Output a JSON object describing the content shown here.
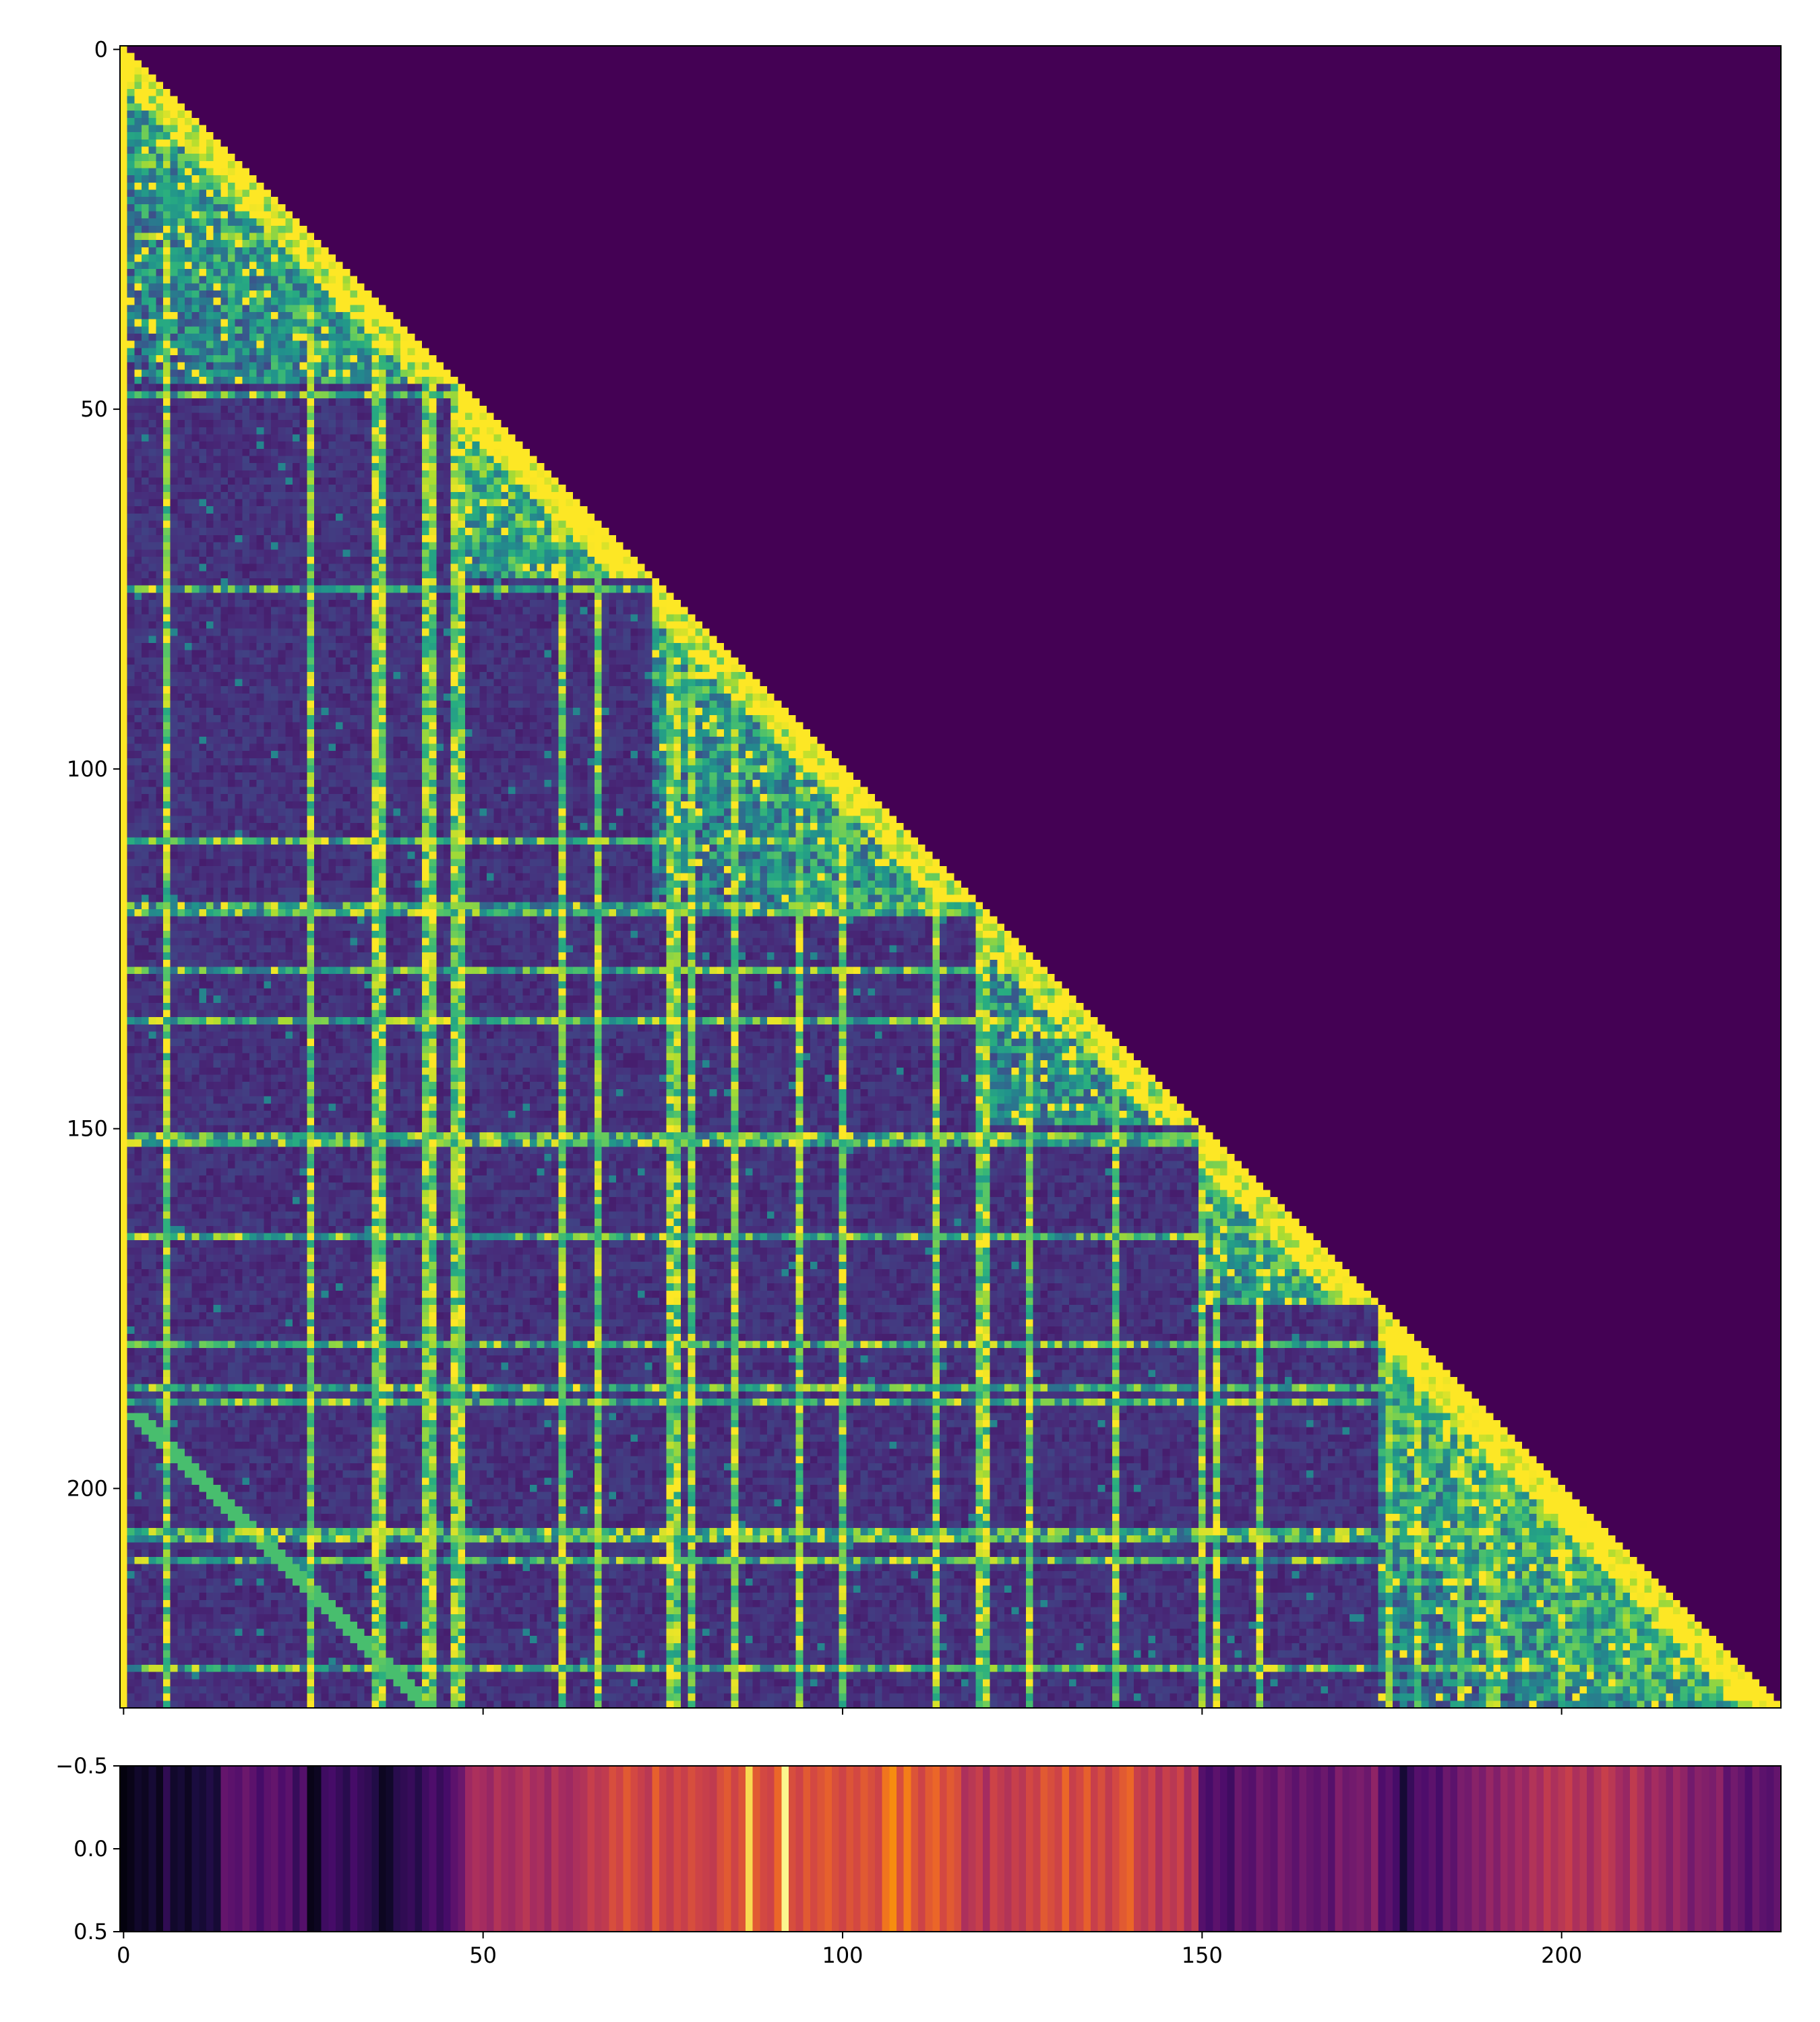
{
  "chart_data": [
    {
      "type": "heatmap",
      "title": "",
      "xlabel": "",
      "ylabel": "",
      "description_of_values": "lower-triangular matrix",
      "n_rows": 231,
      "n_cols": 231,
      "xlim": [
        -0.5,
        230.5
      ],
      "ylim": [
        230.5,
        -0.5
      ],
      "x_ticks": [
        0,
        50,
        100,
        150,
        200
      ],
      "y_ticks": [
        0,
        50,
        100,
        150,
        200
      ],
      "x_tick_labels": [
        "",
        "",
        "",
        "",
        ""
      ],
      "y_tick_labels": [
        "0",
        "50",
        "100",
        "150",
        "200"
      ],
      "colormap": "viridis",
      "upper_triangle_color": "#440154",
      "diagonal_color": "#fde725",
      "blocks": [
        {
          "start": 0,
          "end": 46,
          "level": 0.35
        },
        {
          "start": 47,
          "end": 73,
          "level": 0.45
        },
        {
          "start": 74,
          "end": 118,
          "level": 0.35
        },
        {
          "start": 119,
          "end": 149,
          "level": 0.3
        },
        {
          "start": 150,
          "end": 174,
          "level": 0.4
        },
        {
          "start": 175,
          "end": 230,
          "level": 0.45
        }
      ],
      "bright_columns": [
        0,
        6,
        26,
        35,
        36,
        42,
        43,
        46,
        47,
        61,
        66,
        76,
        77,
        79,
        85,
        94,
        100,
        113,
        119,
        120,
        126,
        138,
        150,
        152,
        158,
        176,
        180,
        186,
        190,
        191,
        200
      ],
      "bright_rows": [
        16,
        26,
        48,
        75,
        110,
        119,
        120,
        128,
        135,
        151,
        152,
        165,
        180,
        186,
        188,
        206,
        207,
        210,
        225
      ]
    },
    {
      "type": "heatmap",
      "title": "",
      "xlabel": "",
      "ylabel": "",
      "n_rows": 1,
      "n_cols": 231,
      "xlim": [
        -0.5,
        230.5
      ],
      "ylim": [
        0.5,
        -0.5
      ],
      "x_ticks": [
        0,
        50,
        100,
        150,
        200
      ],
      "x_tick_labels": [
        "0",
        "50",
        "100",
        "150",
        "200"
      ],
      "y_ticks": [
        -0.5,
        0.0,
        0.5
      ],
      "y_tick_labels": [
        "−0.5",
        "0.0",
        "0.5"
      ],
      "colormap": "inferno",
      "values": [
        0.02,
        0.04,
        0.08,
        0.06,
        0.1,
        0.05,
        0.18,
        0.08,
        0.1,
        0.06,
        0.12,
        0.1,
        0.14,
        0.1,
        0.32,
        0.3,
        0.28,
        0.34,
        0.3,
        0.24,
        0.3,
        0.32,
        0.26,
        0.3,
        0.2,
        0.28,
        0.04,
        0.06,
        0.22,
        0.24,
        0.2,
        0.16,
        0.24,
        0.2,
        0.18,
        0.14,
        0.06,
        0.08,
        0.16,
        0.18,
        0.2,
        0.15,
        0.22,
        0.26,
        0.2,
        0.24,
        0.3,
        0.34,
        0.48,
        0.52,
        0.5,
        0.46,
        0.54,
        0.5,
        0.48,
        0.52,
        0.56,
        0.5,
        0.52,
        0.46,
        0.55,
        0.5,
        0.48,
        0.52,
        0.54,
        0.6,
        0.56,
        0.58,
        0.66,
        0.62,
        0.7,
        0.64,
        0.6,
        0.56,
        0.72,
        0.62,
        0.58,
        0.64,
        0.6,
        0.66,
        0.62,
        0.6,
        0.58,
        0.66,
        0.7,
        0.62,
        0.68,
        0.96,
        0.7,
        0.64,
        0.62,
        0.74,
        0.99,
        0.66,
        0.62,
        0.7,
        0.64,
        0.68,
        0.72,
        0.66,
        0.62,
        0.68,
        0.64,
        0.7,
        0.66,
        0.62,
        0.78,
        0.84,
        0.66,
        0.8,
        0.68,
        0.62,
        0.7,
        0.74,
        0.64,
        0.7,
        0.66,
        0.52,
        0.56,
        0.6,
        0.5,
        0.62,
        0.58,
        0.54,
        0.6,
        0.56,
        0.64,
        0.6,
        0.7,
        0.66,
        0.62,
        0.74,
        0.6,
        0.64,
        0.72,
        0.6,
        0.66,
        0.58,
        0.64,
        0.7,
        0.74,
        0.6,
        0.56,
        0.62,
        0.52,
        0.6,
        0.56,
        0.62,
        0.5,
        0.58,
        0.28,
        0.24,
        0.3,
        0.26,
        0.22,
        0.34,
        0.3,
        0.28,
        0.36,
        0.32,
        0.3,
        0.38,
        0.34,
        0.3,
        0.36,
        0.32,
        0.3,
        0.34,
        0.28,
        0.4,
        0.34,
        0.36,
        0.38,
        0.34,
        0.44,
        0.26,
        0.3,
        0.24,
        0.1,
        0.2,
        0.28,
        0.26,
        0.3,
        0.24,
        0.34,
        0.3,
        0.38,
        0.36,
        0.42,
        0.38,
        0.46,
        0.4,
        0.48,
        0.44,
        0.5,
        0.46,
        0.54,
        0.5,
        0.58,
        0.52,
        0.56,
        0.6,
        0.52,
        0.56,
        0.48,
        0.54,
        0.6,
        0.56,
        0.5,
        0.46,
        0.58,
        0.52,
        0.44,
        0.5,
        0.46,
        0.4,
        0.48,
        0.44,
        0.36,
        0.42,
        0.4,
        0.38,
        0.44,
        0.3,
        0.36,
        0.32,
        0.26,
        0.34,
        0.3,
        0.28,
        0.32
      ]
    }
  ]
}
